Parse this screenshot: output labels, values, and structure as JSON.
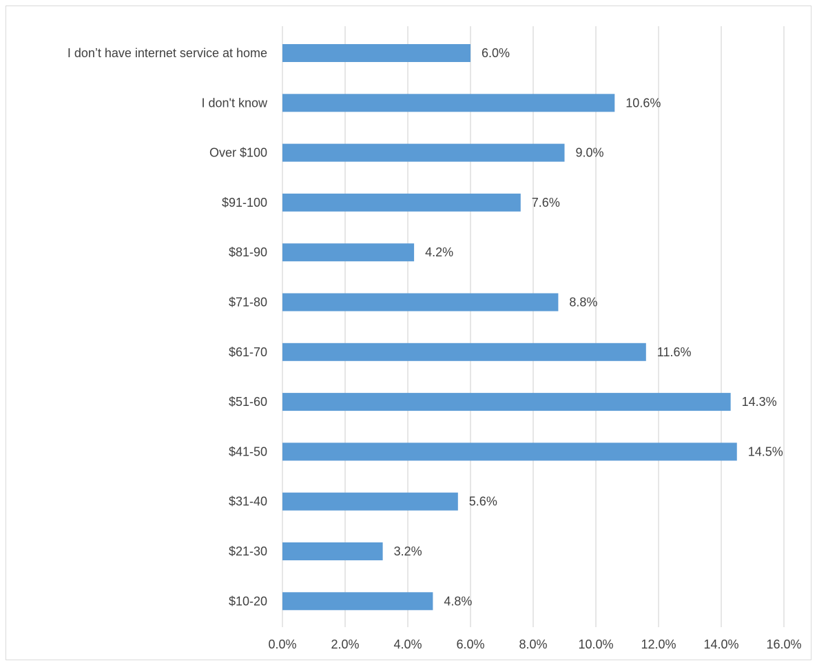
{
  "chart_data": {
    "type": "bar",
    "orientation": "horizontal",
    "title": "",
    "xlabel": "",
    "ylabel": "",
    "categories": [
      "I don’t have internet service at home",
      "I don't know",
      "Over $100",
      "$91-100",
      "$81-90",
      "$71-80",
      "$61-70",
      "$51-60",
      "$41-50",
      "$31-40",
      "$21-30",
      "$10-20"
    ],
    "values": [
      6.0,
      10.6,
      9.0,
      7.6,
      4.2,
      8.8,
      11.6,
      14.3,
      14.5,
      5.6,
      3.2,
      4.8
    ],
    "data_labels": [
      "6.0%",
      "10.6%",
      "9.0%",
      "7.6%",
      "4.2%",
      "8.8%",
      "11.6%",
      "14.3%",
      "14.5%",
      "5.6%",
      "3.2%",
      "4.8%"
    ],
    "xticks": [
      "0.0%",
      "2.0%",
      "4.0%",
      "6.0%",
      "8.0%",
      "10.0%",
      "12.0%",
      "14.0%",
      "16.0%"
    ],
    "xlim": [
      0,
      16
    ],
    "tick_step": 2,
    "grid": "vertical",
    "legend": "none",
    "bar_color": "#5b9bd5",
    "grid_color": "#d9d9d9",
    "text_color": "#404040"
  }
}
